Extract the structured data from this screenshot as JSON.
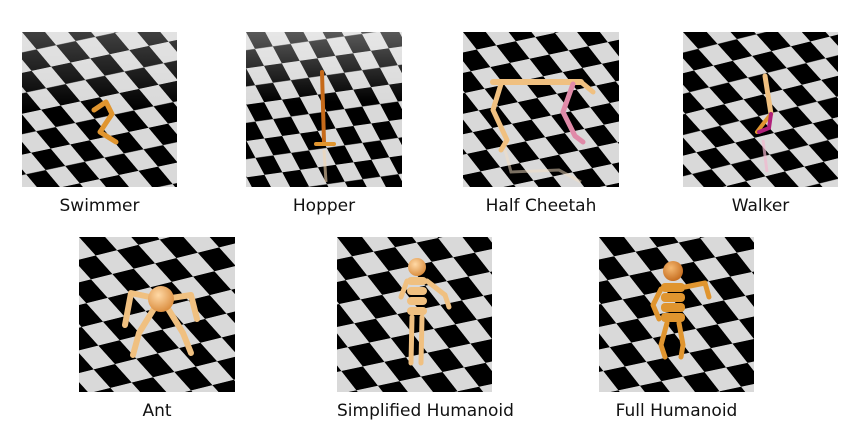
{
  "figure": {
    "panels": [
      {
        "id": "swimmer",
        "label": "Swimmer"
      },
      {
        "id": "hopper",
        "label": "Hopper"
      },
      {
        "id": "half-cheetah",
        "label": "Half Cheetah"
      },
      {
        "id": "walker",
        "label": "Walker"
      },
      {
        "id": "ant",
        "label": "Ant"
      },
      {
        "id": "simplified-humanoid",
        "label": "Simplified Humanoid"
      },
      {
        "id": "full-humanoid",
        "label": "Full Humanoid"
      }
    ]
  },
  "colors": {
    "floor_light": "#d9d9d9",
    "floor_dark": "#000000",
    "body_orange": "#e0952f",
    "body_tan": "#f0c080",
    "limb_pink": "#e08aa8",
    "limb_magenta": "#b0207a"
  }
}
